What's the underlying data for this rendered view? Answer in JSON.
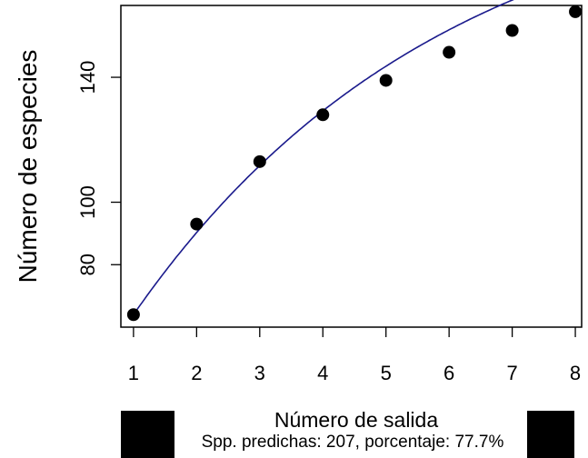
{
  "chart_data": {
    "type": "scatter",
    "xlabel": "Número de salida",
    "ylabel": "Número de especies",
    "x": [
      1,
      2,
      3,
      4,
      5,
      6,
      7,
      8
    ],
    "values": [
      64,
      93,
      113,
      128,
      139,
      148,
      155,
      161
    ],
    "x_ticks": [
      "1",
      "2",
      "3",
      "4",
      "5",
      "6",
      "7",
      "8"
    ],
    "y_ticks": [
      "80",
      "100",
      "140"
    ],
    "xlim": [
      0.8,
      8.1
    ],
    "ylim": [
      60,
      163
    ],
    "fit_curve": {
      "asymptote": 207,
      "rate": 0.2031,
      "color": "#1a1a8c"
    },
    "point_color": "#000000",
    "grid": false,
    "legend": "none"
  },
  "footnote": "Spp. predichas: 207, porcentaje: 77.7%"
}
